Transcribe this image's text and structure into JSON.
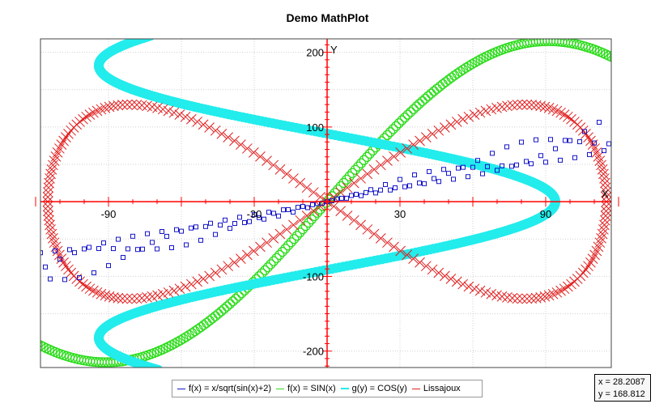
{
  "window": {
    "title": "Demo MathPlot"
  },
  "colors": {
    "sqrt_series": "#1515c8",
    "sin_series": "#2fdc1e",
    "cos_series": "#22ecec",
    "lissajoux_series": "#e11f1f",
    "axis": "#ff0000",
    "grid": "#d0d0d0"
  },
  "chart_data": {
    "type": "scatter",
    "title": "Demo MathPlot",
    "xlabel": "X",
    "ylabel": "Y",
    "xlim": [
      -118,
      117
    ],
    "ylim": [
      -222,
      218
    ],
    "grid": true,
    "x_tick_labels": [
      "-90",
      "-30",
      "30",
      "90"
    ],
    "y_tick_labels": [
      "200",
      "100",
      "-100",
      "-200"
    ],
    "series": [
      {
        "name": "f(x) = x/sqrt(sin(x)+2)",
        "marker": "square",
        "description": "y = x/sqrt(sin(x)+2) evaluated every 2 units for x in [-136, 134]"
      },
      {
        "name": "f(x) = SIN(x)",
        "marker": "circle",
        "description": "y = 215*sin(x/58) for x in [-136, 136]"
      },
      {
        "name": "g(y) = COS(y)",
        "marker": "circle",
        "description": "x = 94*cos(y/58) for y in [-225, 222]"
      },
      {
        "name": "Lissajoux",
        "marker": "x",
        "description": "x = 115*sin(t), y = 130*sin(2t), t in [0, 2pi]"
      }
    ],
    "legend": {
      "position": "bottom",
      "entries": [
        "f(x) = x/sqrt(sin(x)+2)",
        "f(x) = SIN(x)",
        "g(y) = COS(y)",
        "Lissajoux"
      ]
    }
  },
  "coordinates": {
    "x_readout": "x = 28.2087",
    "y_readout": "y = 168.812"
  }
}
